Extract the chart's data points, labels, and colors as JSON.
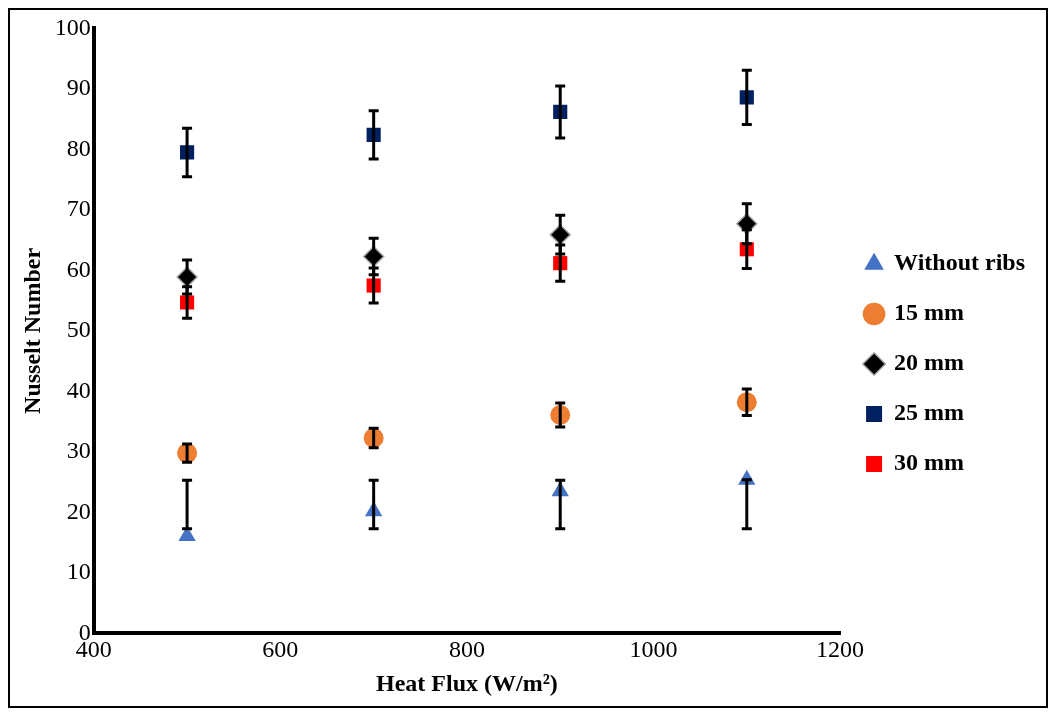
{
  "chart_data": {
    "type": "scatter",
    "xlabel": "Heat Flux (W/m²)",
    "ylabel": "Nusselt Number",
    "x": [
      500,
      700,
      900,
      1100
    ],
    "xlim": [
      400,
      1200
    ],
    "xticks": [
      400,
      600,
      800,
      1000,
      1200
    ],
    "ylim": [
      0,
      100
    ],
    "yticks": [
      0,
      10,
      20,
      30,
      40,
      50,
      60,
      70,
      80,
      90,
      100
    ],
    "grid": false,
    "legend": "right",
    "series": [
      {
        "name": "Without ribs",
        "color": "#4472c4",
        "marker": "triangle",
        "values": [
          16.1,
          20.2,
          23.5,
          25.4
        ],
        "errors": [
          [
            17.3,
            25.3
          ],
          [
            17.3,
            25.3
          ],
          [
            17.3,
            25.3
          ],
          [
            17.3,
            25.4
          ]
        ]
      },
      {
        "name": "15 mm",
        "color": "#ed7d31",
        "marker": "circle",
        "values": [
          29.8,
          32.3,
          36.1,
          38.2
        ],
        "errors": [
          1.5,
          1.6,
          2,
          2.2
        ]
      },
      {
        "name": "20 mm",
        "color": "#000000",
        "marker": "diamond",
        "values": [
          58.9,
          62.3,
          65.9,
          67.7
        ],
        "errors": [
          2.8,
          3,
          3.2,
          3.3
        ]
      },
      {
        "name": "25 mm",
        "color": "#002060",
        "marker": "square",
        "values": [
          79.5,
          82.4,
          86.2,
          88.6
        ],
        "errors": [
          4,
          4,
          4.3,
          4.5
        ]
      },
      {
        "name": "30 mm",
        "color": "#ff0000",
        "marker": "square",
        "values": [
          54.7,
          57.5,
          61.2,
          63.5
        ],
        "errors": [
          2.6,
          2.9,
          3,
          3.2
        ]
      }
    ]
  }
}
